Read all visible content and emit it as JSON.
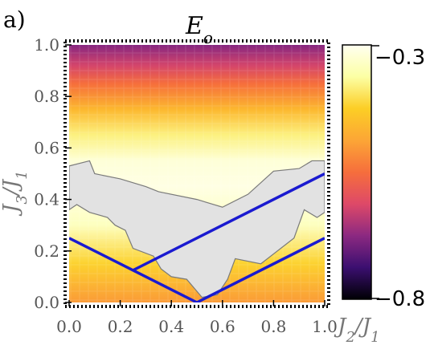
{
  "panel_label": "a)",
  "colors": {
    "colormap": [
      "#000004",
      "#3b0f70",
      "#8c2981",
      "#de4968",
      "#f66e3c",
      "#fca636",
      "#fcce25",
      "#fcffa4",
      "#fffff0"
    ],
    "region_fill": "#e2e2e2",
    "region_edge": "#7a7a7a",
    "line": "#1a1ad0"
  },
  "chart_data": {
    "type": "heatmap",
    "title": "E_o",
    "xlabel": "J_2/J_1",
    "ylabel": "J_3/J_1",
    "xlim": [
      0.0,
      1.0
    ],
    "ylim": [
      0.0,
      1.0
    ],
    "xticks": [
      "0.0",
      "0.2",
      "0.4",
      "0.6",
      "0.8",
      "1.0"
    ],
    "yticks": [
      "0.0",
      "0.2",
      "0.4",
      "0.6",
      "0.8",
      "1.0"
    ],
    "colorbar": {
      "min": -0.8,
      "max": -0.3,
      "labels": [
        "−0.3",
        "−0.8"
      ]
    },
    "field_profile": [
      {
        "y": 0.0,
        "e": -0.5
      },
      {
        "y": 0.15,
        "e": -0.42
      },
      {
        "y": 0.3,
        "e": -0.34
      },
      {
        "y": 0.45,
        "e": -0.31
      },
      {
        "y": 0.55,
        "e": -0.32
      },
      {
        "y": 0.65,
        "e": -0.38
      },
      {
        "y": 0.75,
        "e": -0.46
      },
      {
        "y": 0.85,
        "e": -0.55
      },
      {
        "y": 0.92,
        "e": -0.62
      },
      {
        "y": 1.0,
        "e": -0.68
      }
    ],
    "gray_region_outline": [
      [
        0.0,
        0.53
      ],
      [
        0.08,
        0.55
      ],
      [
        0.1,
        0.5
      ],
      [
        0.2,
        0.48
      ],
      [
        0.3,
        0.45
      ],
      [
        0.35,
        0.43
      ],
      [
        0.5,
        0.4
      ],
      [
        0.6,
        0.37
      ],
      [
        0.7,
        0.42
      ],
      [
        0.8,
        0.51
      ],
      [
        0.9,
        0.52
      ],
      [
        0.95,
        0.55
      ],
      [
        1.0,
        0.55
      ],
      [
        1.0,
        0.35
      ],
      [
        0.97,
        0.33
      ],
      [
        0.92,
        0.36
      ],
      [
        0.88,
        0.25
      ],
      [
        0.75,
        0.15
      ],
      [
        0.65,
        0.17
      ],
      [
        0.62,
        0.09
      ],
      [
        0.58,
        0.03
      ],
      [
        0.52,
        0.02
      ],
      [
        0.46,
        0.09
      ],
      [
        0.4,
        0.1
      ],
      [
        0.36,
        0.13
      ],
      [
        0.33,
        0.18
      ],
      [
        0.25,
        0.21
      ],
      [
        0.22,
        0.28
      ],
      [
        0.18,
        0.3
      ],
      [
        0.15,
        0.33
      ],
      [
        0.08,
        0.35
      ],
      [
        0.03,
        0.38
      ],
      [
        0.0,
        0.36
      ]
    ],
    "series": [
      {
        "x": [
          0.0,
          0.5,
          1.0
        ],
        "y": [
          0.25,
          0.0,
          0.25
        ]
      },
      {
        "x": [
          0.25,
          1.0
        ],
        "y": [
          0.125,
          0.5
        ]
      }
    ]
  }
}
